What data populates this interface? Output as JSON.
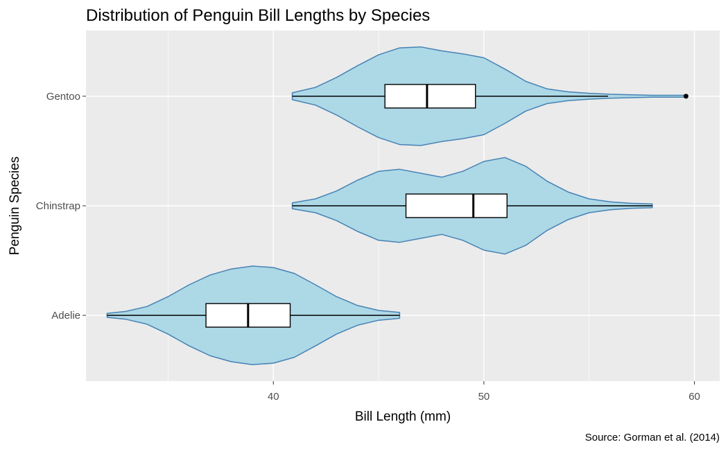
{
  "chart_data": {
    "type": "violin",
    "title": "Distribution of Penguin Bill Lengths by Species",
    "xlabel": "Bill Length (mm)",
    "ylabel": "Penguin Species",
    "caption": "Source: Gorman et al. (2014)",
    "xlim": [
      31.1,
      61.2
    ],
    "x_ticks": [
      40,
      50,
      60
    ],
    "x_tick_labels": [
      "40",
      "50",
      "60"
    ],
    "x_minor_ticks": [
      35,
      45,
      55
    ],
    "categories": [
      "Adelie",
      "Chinstrap",
      "Gentoo"
    ],
    "violin_fill": "#add8e6",
    "violin_stroke": "#4682b4",
    "panel_background": "#ebebeb",
    "grid": true,
    "series": [
      {
        "name": "Adelie",
        "range": [
          32.1,
          46.0
        ],
        "density_width": [
          [
            32.1,
            0.04
          ],
          [
            33.0,
            0.08
          ],
          [
            34.0,
            0.18
          ],
          [
            35.0,
            0.38
          ],
          [
            36.0,
            0.62
          ],
          [
            37.0,
            0.82
          ],
          [
            38.0,
            0.94
          ],
          [
            39.0,
            1.0
          ],
          [
            40.0,
            0.97
          ],
          [
            41.0,
            0.85
          ],
          [
            42.0,
            0.62
          ],
          [
            43.0,
            0.38
          ],
          [
            44.0,
            0.2
          ],
          [
            45.0,
            0.1
          ],
          [
            46.0,
            0.06
          ]
        ],
        "box": {
          "q1": 36.8,
          "median": 38.8,
          "q3": 40.8,
          "whisker_low": 32.1,
          "whisker_high": 46.0
        },
        "outliers": []
      },
      {
        "name": "Chinstrap",
        "range": [
          40.9,
          58.0
        ],
        "density_width": [
          [
            40.9,
            0.06
          ],
          [
            42.0,
            0.14
          ],
          [
            43.0,
            0.3
          ],
          [
            44.0,
            0.52
          ],
          [
            45.0,
            0.7
          ],
          [
            46.0,
            0.74
          ],
          [
            47.0,
            0.66
          ],
          [
            48.0,
            0.58
          ],
          [
            49.0,
            0.7
          ],
          [
            50.0,
            0.9
          ],
          [
            51.0,
            0.98
          ],
          [
            52.0,
            0.8
          ],
          [
            53.0,
            0.5
          ],
          [
            54.0,
            0.28
          ],
          [
            55.0,
            0.14
          ],
          [
            56.0,
            0.08
          ],
          [
            57.0,
            0.05
          ],
          [
            58.0,
            0.04
          ]
        ],
        "box": {
          "q1": 46.3,
          "median": 49.5,
          "q3": 51.1,
          "whisker_low": 40.9,
          "whisker_high": 58.0
        },
        "outliers": []
      },
      {
        "name": "Gentoo",
        "range": [
          40.9,
          59.6
        ],
        "density_width": [
          [
            40.9,
            0.07
          ],
          [
            42.0,
            0.18
          ],
          [
            43.0,
            0.38
          ],
          [
            44.0,
            0.62
          ],
          [
            45.0,
            0.84
          ],
          [
            46.0,
            0.98
          ],
          [
            47.0,
            1.0
          ],
          [
            48.0,
            0.92
          ],
          [
            49.0,
            0.86
          ],
          [
            50.0,
            0.78
          ],
          [
            51.0,
            0.55
          ],
          [
            52.0,
            0.3
          ],
          [
            53.0,
            0.15
          ],
          [
            54.0,
            0.09
          ],
          [
            55.0,
            0.06
          ],
          [
            56.0,
            0.04
          ],
          [
            57.0,
            0.03
          ],
          [
            58.0,
            0.02
          ],
          [
            59.6,
            0.02
          ]
        ],
        "box": {
          "q1": 45.3,
          "median": 47.3,
          "q3": 49.6,
          "whisker_low": 40.9,
          "whisker_high": 55.9
        },
        "outliers": [
          59.6
        ]
      }
    ]
  }
}
